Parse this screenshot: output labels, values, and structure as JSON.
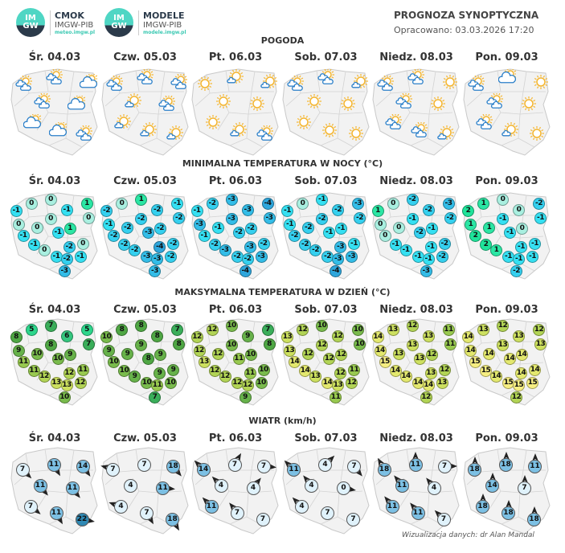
{
  "logos": [
    {
      "mark": "IMGW",
      "name": "CMOK",
      "org": "IMGW-PIB",
      "url": "meteo.imgw.pl"
    },
    {
      "mark": "IMGW",
      "name": "MODELE",
      "org": "IMGW-PIB",
      "url": "modele.imgw.pl"
    }
  ],
  "header": {
    "title": "PROGNOZA SYNOPTYCZNA",
    "prepared": "Opracowano: 03.03.2026 17:20"
  },
  "days": [
    "Śr. 04.03",
    "Czw. 05.03",
    "Pt. 06.03",
    "Sob. 07.03",
    "Niedz. 08.03",
    "Pon. 09.03"
  ],
  "sections": {
    "weather": "POGODA",
    "tmin": "MINIMALNA TEMPERATURA W NOCY (°C)",
    "tmax": "MAKSYMALNA TEMPERATURA W DZIEŃ (°C)",
    "wind": "WIATR (km/h)"
  },
  "weather": [
    [
      "partly-cloudy",
      "partly-cloudy",
      "cloudy",
      "partly-cloudy",
      "cloudy",
      "cloudy",
      "cloudy",
      "partly-cloudy"
    ],
    [
      "partly-cloudy",
      "partly-cloudy",
      "partly-cloudy",
      "sun-small-cloud",
      "partly-cloudy",
      "sun-small-cloud",
      "sun-small-cloud",
      "sun-small-cloud"
    ],
    [
      "sun",
      "sun-small-cloud",
      "sun-small-cloud",
      "sun",
      "sun",
      "sun",
      "sun-small-cloud",
      "partly-cloudy"
    ],
    [
      "partly-cloudy",
      "partly-cloudy",
      "sun-small-cloud",
      "sun",
      "sun",
      "sun",
      "sun",
      "sun"
    ],
    [
      "partly-cloudy",
      "partly-cloudy",
      "sun",
      "partly-cloudy",
      "sun",
      "partly-cloudy",
      "partly-cloudy",
      "sun-small-cloud"
    ],
    [
      "partly-cloudy",
      "cloudy",
      "sun",
      "partly-cloudy",
      "sun",
      "partly-cloudy",
      "sun-small-cloud",
      "sun"
    ]
  ],
  "tmin": [
    [
      "-1",
      "0",
      "0",
      "-1",
      "1",
      "0",
      "0",
      "0",
      "0",
      "1",
      "-1",
      "-1",
      "-1",
      "0",
      "-2",
      "0",
      "-1",
      "-2",
      "-1",
      "-3"
    ],
    [
      "-2",
      "0",
      "1",
      "-2",
      "-1",
      "-2",
      "-2",
      "-1",
      "-2",
      "-2",
      "-3",
      "-2",
      "-2",
      "-2",
      "-4",
      "-2",
      "-3",
      "-3",
      "-2",
      "-3"
    ],
    [
      "-1",
      "-2",
      "-3",
      "-3",
      "-4",
      "-3",
      "-3",
      "-3",
      "-1",
      "-2",
      "-2",
      "-1",
      "-2",
      "-3",
      "-3",
      "-2",
      "-2",
      "-2",
      "-3",
      "-4"
    ],
    [
      "-1",
      "0",
      "-1",
      "-2",
      "-3",
      "-2",
      "-2",
      "-1",
      "-2",
      "-1",
      "-1",
      "-2",
      "-2",
      "-2",
      "-3",
      "-1",
      "-2",
      "-3",
      "-3",
      "-4"
    ],
    [
      "1",
      "0",
      "-2",
      "-2",
      "-3",
      "-2",
      "-1",
      "0",
      "0",
      "-1",
      "-2",
      "0",
      "-1",
      "-1",
      "-1",
      "-2",
      "-1",
      "-1",
      "-2",
      "-3"
    ],
    [
      "2",
      "1",
      "0",
      "0",
      "-2",
      "-1",
      "-1",
      "1",
      "1",
      "0",
      "-1",
      "2",
      "2",
      "1",
      "-1",
      "-1",
      "-1",
      "-1",
      "-1",
      "-2"
    ]
  ],
  "tmax": [
    [
      "8",
      "5",
      "7",
      "6",
      "5",
      "7",
      "8",
      "9",
      "10",
      "9",
      "10",
      "11",
      "11",
      "12",
      "12",
      "11",
      "13",
      "13",
      "12",
      "10"
    ],
    [
      "10",
      "8",
      "8",
      "8",
      "7",
      "8",
      "9",
      "9",
      "9",
      "9",
      "8",
      "10",
      "10",
      "9",
      "9",
      "9",
      "10",
      "11",
      "10",
      "7"
    ],
    [
      "12",
      "12",
      "10",
      "9",
      "7",
      "8",
      "10",
      "12",
      "12",
      "10",
      "11",
      "13",
      "12",
      "12",
      "11",
      "10",
      "12",
      "12",
      "10",
      "9"
    ],
    [
      "13",
      "12",
      "10",
      "12",
      "10",
      "10",
      "12",
      "13",
      "12",
      "12",
      "12",
      "14",
      "14",
      "13",
      "12",
      "11",
      "14",
      "13",
      "12",
      "11"
    ],
    [
      "14",
      "13",
      "12",
      "13",
      "11",
      "11",
      "13",
      "14",
      "13",
      "12",
      "13",
      "15",
      "14",
      "14",
      "13",
      "12",
      "14",
      "14",
      "13",
      "12"
    ],
    [
      "14",
      "13",
      "12",
      "13",
      "12",
      "13",
      "13",
      "14",
      "14",
      "14",
      "14",
      "15",
      "15",
      "14",
      "14",
      "14",
      "15",
      "15",
      "15",
      "12"
    ]
  ],
  "wind": [
    [
      {
        "v": "7",
        "dir": 135
      },
      {
        "v": "11",
        "dir": 150
      },
      {
        "v": "14",
        "dir": 145
      },
      {
        "v": "11",
        "dir": 140
      },
      {
        "v": "11",
        "dir": 140
      },
      {
        "v": "7",
        "dir": 130
      },
      {
        "v": "11",
        "dir": 150
      },
      {
        "v": "22",
        "dir": 100
      }
    ],
    [
      {
        "v": "7",
        "dir": 285
      },
      {
        "v": "7",
        "dir": null
      },
      {
        "v": "18",
        "dir": 140
      },
      {
        "v": "4",
        "dir": null
      },
      {
        "v": "11",
        "dir": 95
      },
      {
        "v": "4",
        "dir": 290
      },
      {
        "v": "7",
        "dir": 150
      },
      {
        "v": "18",
        "dir": 150
      }
    ],
    [
      {
        "v": "14",
        "dir": 315
      },
      {
        "v": "7",
        "dir": 30
      },
      {
        "v": "7",
        "dir": 95
      },
      {
        "v": "4",
        "dir": 315
      },
      {
        "v": "4",
        "dir": 40
      },
      {
        "v": "11",
        "dir": 315
      },
      {
        "v": "7",
        "dir": 320
      },
      {
        "v": "7",
        "dir": null
      }
    ],
    [
      {
        "v": "11",
        "dir": 315
      },
      {
        "v": "4",
        "dir": 45
      },
      {
        "v": "7",
        "dir": 140
      },
      {
        "v": "4",
        "dir": 320
      },
      {
        "v": "0",
        "dir": 100
      },
      {
        "v": "4",
        "dir": 315
      },
      {
        "v": "7",
        "dir": null
      },
      {
        "v": "7",
        "dir": null
      }
    ],
    [
      {
        "v": "18",
        "dir": 330
      },
      {
        "v": "11",
        "dir": 0
      },
      {
        "v": "7",
        "dir": 90
      },
      {
        "v": "11",
        "dir": 320
      },
      {
        "v": "4",
        "dir": 320
      },
      {
        "v": "11",
        "dir": 320
      },
      {
        "v": "11",
        "dir": 320
      },
      {
        "v": "7",
        "dir": 315
      }
    ],
    [
      {
        "v": "18",
        "dir": 0
      },
      {
        "v": "18",
        "dir": 0
      },
      {
        "v": "11",
        "dir": 0
      },
      {
        "v": "14",
        "dir": 0
      },
      {
        "v": "7",
        "dir": 0
      },
      {
        "v": "18",
        "dir": 0
      },
      {
        "v": "18",
        "dir": 0
      },
      {
        "v": "18",
        "dir": 0
      }
    ]
  ],
  "colors": {
    "tmin": {
      "2": "#1fe39a",
      "1": "#2be6a4",
      "0": "#a9efe0",
      "-1": "#35e0f2",
      "-2": "#35d0ef",
      "-3": "#33bde8",
      "-4": "#2ea6dc"
    },
    "tmax": {
      "5": "#2dd68c",
      "6": "#35c77f",
      "7": "#3aae5a",
      "8": "#4fa744",
      "9": "#67b24a",
      "10": "#79bb4c",
      "11": "#98c94f",
      "12": "#b2d455",
      "13": "#cde05f",
      "14": "#e3e86e",
      "15": "#f6ee82"
    },
    "wind_light": "#e0f2fb",
    "wind_mid": "#7cc0e4",
    "wind_strong": "#2f89b4",
    "sun": "#f5b52d",
    "cloud": "#2a7fc9"
  },
  "credit": "Wizualizacja danych: dr Alan Mandal"
}
